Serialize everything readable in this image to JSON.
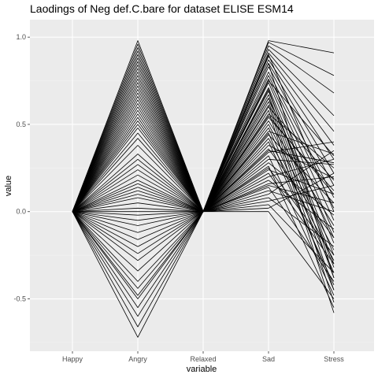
{
  "chart_data": {
    "type": "line",
    "title": "Laodings of Neg def.C.bare for dataset ELISE ESM14",
    "xlabel": "variable",
    "ylabel": "value",
    "categories": [
      "Happy",
      "Angry",
      "Relaxed",
      "Sad",
      "Stress"
    ],
    "ylim": [
      -0.8,
      1.1
    ],
    "yticks": [
      {
        "value": -0.5,
        "label": "-0.5"
      },
      {
        "value": 0.0,
        "label": "0.0"
      },
      {
        "value": 0.5,
        "label": "0.5"
      },
      {
        "value": 1.0,
        "label": "1.0"
      }
    ],
    "grid": true,
    "legend": "none",
    "colors": {
      "panel": "#ebebeb",
      "grid_major": "#ffffff",
      "grid_minor": "#f2f2f2",
      "line": "#000000"
    },
    "series": [
      {
        "values": [
          0,
          0.98,
          0,
          0.98,
          0.91
        ]
      },
      {
        "values": [
          0,
          0.96,
          0,
          0.97,
          0.78
        ]
      },
      {
        "values": [
          0,
          0.94,
          0,
          0.95,
          0.68
        ]
      },
      {
        "values": [
          0,
          0.92,
          0,
          0.93,
          0.55
        ]
      },
      {
        "values": [
          0,
          0.9,
          0,
          0.91,
          0.46
        ]
      },
      {
        "values": [
          0,
          0.88,
          0,
          0.89,
          0.38
        ]
      },
      {
        "values": [
          0,
          0.86,
          0,
          0.87,
          0.3
        ]
      },
      {
        "values": [
          0,
          0.84,
          0,
          0.85,
          0.22
        ]
      },
      {
        "values": [
          0,
          0.82,
          0,
          0.83,
          0.15
        ]
      },
      {
        "values": [
          0,
          0.8,
          0,
          0.8,
          0.08
        ]
      },
      {
        "values": [
          0,
          0.78,
          0,
          0.78,
          0.02
        ]
      },
      {
        "values": [
          0,
          0.76,
          0,
          0.76,
          -0.05
        ]
      },
      {
        "values": [
          0,
          0.74,
          0,
          0.74,
          -0.12
        ]
      },
      {
        "values": [
          0,
          0.72,
          0,
          0.71,
          -0.18
        ]
      },
      {
        "values": [
          0,
          0.7,
          0,
          0.69,
          -0.25
        ]
      },
      {
        "values": [
          0,
          0.68,
          0,
          0.67,
          -0.32
        ]
      },
      {
        "values": [
          0,
          0.66,
          0,
          0.65,
          -0.38
        ]
      },
      {
        "values": [
          0,
          0.64,
          0,
          0.63,
          -0.45
        ]
      },
      {
        "values": [
          0,
          0.62,
          0,
          0.61,
          -0.52
        ]
      },
      {
        "values": [
          0,
          0.6,
          0,
          0.58,
          -0.58
        ]
      },
      {
        "values": [
          0,
          0.58,
          0,
          0.56,
          0.25
        ]
      },
      {
        "values": [
          0,
          0.56,
          0,
          0.54,
          0.12
        ]
      },
      {
        "values": [
          0,
          0.54,
          0,
          0.52,
          -0.08
        ]
      },
      {
        "values": [
          0,
          0.52,
          0,
          0.5,
          -0.22
        ]
      },
      {
        "values": [
          0,
          0.5,
          0,
          0.48,
          -0.35
        ]
      },
      {
        "values": [
          0,
          0.48,
          0,
          0.46,
          0.33
        ]
      },
      {
        "values": [
          0,
          0.45,
          0,
          0.44,
          0.05
        ]
      },
      {
        "values": [
          0,
          0.42,
          0,
          0.42,
          -0.28
        ]
      },
      {
        "values": [
          0,
          0.38,
          0,
          0.4,
          -0.42
        ]
      },
      {
        "values": [
          0,
          0.33,
          0,
          0.38,
          0.19
        ]
      },
      {
        "values": [
          0,
          0.3,
          0,
          0.36,
          -0.15
        ]
      },
      {
        "values": [
          0,
          0.27,
          0,
          0.34,
          0.4
        ]
      },
      {
        "values": [
          0,
          0.24,
          0,
          0.32,
          -0.48
        ]
      },
      {
        "values": [
          0,
          0.21,
          0,
          0.3,
          0.27
        ]
      },
      {
        "values": [
          0,
          0.18,
          0,
          0.28,
          -0.02
        ]
      },
      {
        "values": [
          0,
          0.16,
          0,
          0.26,
          -0.55
        ]
      },
      {
        "values": [
          0,
          0.14,
          0,
          0.24,
          0.1
        ]
      },
      {
        "values": [
          0,
          0.12,
          0,
          0.22,
          -0.3
        ]
      },
      {
        "values": [
          0,
          0.1,
          0,
          0.2,
          0.3
        ]
      },
      {
        "values": [
          0,
          0.08,
          0,
          0.18,
          -0.1
        ]
      },
      {
        "values": [
          0,
          0.05,
          0,
          0.16,
          0.2
        ]
      },
      {
        "values": [
          0,
          0.02,
          0,
          0.14,
          -0.4
        ]
      },
      {
        "values": [
          0,
          0.0,
          0,
          0.12,
          0.0
        ]
      },
      {
        "values": [
          0,
          -0.02,
          0,
          0.1,
          0.35
        ]
      },
      {
        "values": [
          0,
          -0.05,
          0,
          0.08,
          -0.2
        ]
      },
      {
        "values": [
          0,
          -0.08,
          0,
          0.06,
          0.15
        ]
      },
      {
        "values": [
          0,
          -0.12,
          0,
          0.04,
          -0.35
        ]
      },
      {
        "values": [
          0,
          -0.16,
          0,
          0.02,
          0.22
        ]
      },
      {
        "values": [
          0,
          -0.2,
          0,
          0.0,
          -0.5
        ]
      },
      {
        "values": [
          0,
          -0.24,
          0,
          0.15,
          0.05
        ]
      },
      {
        "values": [
          0,
          -0.28,
          0,
          0.25,
          -0.25
        ]
      },
      {
        "values": [
          0,
          -0.34,
          0,
          0.35,
          0.28
        ]
      },
      {
        "values": [
          0,
          -0.4,
          0,
          0.45,
          -0.45
        ]
      },
      {
        "values": [
          0,
          -0.44,
          0,
          0.55,
          0.1
        ]
      },
      {
        "values": [
          0,
          -0.48,
          0,
          0.65,
          -0.15
        ]
      },
      {
        "values": [
          0,
          -0.5,
          0,
          0.75,
          0.32
        ]
      },
      {
        "values": [
          0,
          -0.55,
          0,
          0.85,
          -0.38
        ]
      },
      {
        "values": [
          0,
          -0.6,
          0,
          0.9,
          0.0
        ]
      },
      {
        "values": [
          0,
          -0.66,
          0,
          0.7,
          -0.3
        ]
      },
      {
        "values": [
          0,
          -0.72,
          0,
          0.6,
          0.18
        ]
      }
    ]
  }
}
